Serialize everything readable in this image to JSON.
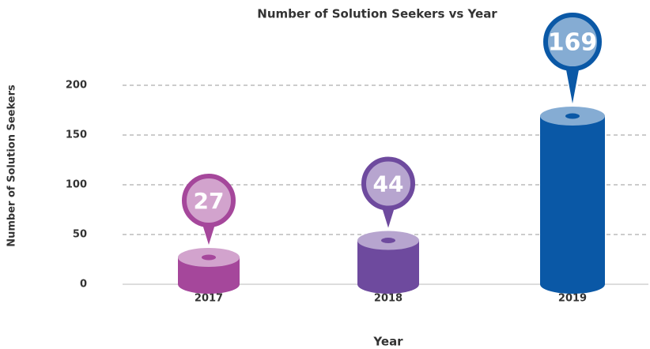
{
  "chart_data": {
    "type": "bar",
    "title": "Number of Solution Seekers vs Year",
    "x_label": "Year",
    "y_label": "Number of Solution Seekers",
    "categories": [
      "2017",
      "2018",
      "2019"
    ],
    "values": [
      27,
      44,
      169
    ],
    "colors": [
      "#a5479b",
      "#6e4a9e",
      "#0a58a6"
    ],
    "ylim": [
      0,
      200
    ],
    "yticks": [
      0,
      50,
      100,
      150,
      200
    ],
    "grid": true
  }
}
